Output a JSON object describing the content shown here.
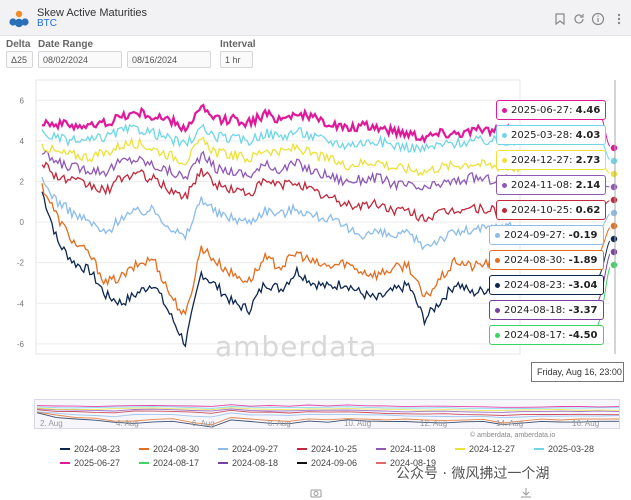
{
  "header": {
    "title": "Skew Active Maturities",
    "subtitle": "BTC",
    "icons": [
      "bookmark-icon",
      "refresh-icon",
      "info-icon",
      "more-icon"
    ]
  },
  "controls": {
    "delta_label": "Delta",
    "delta_value": "Δ25",
    "date_range_label": "Date Range",
    "date_start": "08/02/2024",
    "date_end": "08/16/2024",
    "interval_label": "Interval",
    "interval_value": "1 hr"
  },
  "tooltip": {
    "time": "Friday, Aug 16, 23:00",
    "entries": [
      {
        "label": "2025-06-27:",
        "value": "4.46",
        "color": "#e0189a"
      },
      {
        "label": "2025-03-28:",
        "value": "4.03",
        "color": "#6fd6e8"
      },
      {
        "label": "2024-12-27:",
        "value": "2.73",
        "color": "#ece13a"
      },
      {
        "label": "2024-11-08:",
        "value": "2.14",
        "color": "#8e58b8"
      },
      {
        "label": "2024-10-25:",
        "value": "0.62",
        "color": "#c2273a"
      },
      {
        "label": "2024-09-27:",
        "value": "-0.19",
        "color": "#8bbcec"
      },
      {
        "label": "2024-08-30:",
        "value": "-1.89",
        "color": "#e46d1e"
      },
      {
        "label": "2024-08-23:",
        "value": "-3.04",
        "color": "#0e2750"
      },
      {
        "label": "2024-08-18:",
        "value": "-3.37",
        "color": "#7a3fa0"
      },
      {
        "label": "2024-08-17:",
        "value": "-4.50",
        "color": "#3ed463"
      }
    ]
  },
  "watermark": "amberdata",
  "credit": "© amberdata, amberdata.io",
  "wechat": "公众号 · 微风拂过一个湖",
  "chart_data": {
    "type": "line",
    "ylim": [
      -6.5,
      7
    ],
    "yticks": [
      6,
      4,
      2,
      0,
      -2,
      -4,
      -6
    ],
    "xticks": [
      "3. Aug",
      "5. Aug",
      "7. Aug",
      "9. Aug",
      "11. Aug",
      "13. Aug",
      "15. Aug"
    ],
    "nav_ticks": [
      "2. Aug",
      "4. Aug",
      "6. Aug",
      "8. Aug",
      "10. Aug",
      "12. Aug",
      "14. Aug",
      "16. Aug"
    ],
    "series": [
      {
        "name": "2024-08-23",
        "color": "#0e2750",
        "values": [
          1.5,
          -1.0,
          -2.0,
          -2.4,
          -3.6,
          -4.0,
          -3.5,
          -3.0,
          -4.5,
          -6.0,
          -2.5,
          -3.2,
          -4.0,
          -4.3,
          -3.0,
          -3.3,
          -2.4,
          -3.0,
          -3.2,
          -3.0,
          -3.5,
          -3.8,
          -3.4,
          -3.1,
          -4.8,
          -3.9,
          -3.0,
          -3.5,
          -3.3,
          -3.1,
          -3.0
        ]
      },
      {
        "name": "2024-08-30",
        "color": "#e46d1e",
        "values": [
          1.8,
          0.2,
          -1.0,
          -1.6,
          -3.0,
          -2.7,
          -2.1,
          -1.8,
          -3.5,
          -4.7,
          -1.2,
          -2.0,
          -2.6,
          -2.9,
          -1.8,
          -2.2,
          -1.5,
          -2.0,
          -2.2,
          -2.0,
          -2.4,
          -2.6,
          -2.3,
          -2.1,
          -3.8,
          -2.8,
          -1.9,
          -2.2,
          -2.0,
          -1.9,
          -1.9
        ]
      },
      {
        "name": "2024-09-27",
        "color": "#8bbcec",
        "values": [
          2.0,
          1.0,
          0.4,
          0.0,
          -0.6,
          0.3,
          0.5,
          0.6,
          -0.2,
          -0.8,
          1.2,
          0.4,
          0.2,
          0.0,
          0.6,
          0.4,
          0.7,
          0.3,
          0.2,
          -0.3,
          -0.6,
          -0.5,
          -0.7,
          -0.6,
          -1.2,
          -0.8,
          -0.5,
          -0.4,
          -0.3,
          -0.2,
          -0.2
        ]
      },
      {
        "name": "2024-10-25",
        "color": "#c2273a",
        "values": [
          3.0,
          2.2,
          2.0,
          1.8,
          1.5,
          2.2,
          2.4,
          2.1,
          1.6,
          1.2,
          2.6,
          1.8,
          1.6,
          1.4,
          2.0,
          1.8,
          2.0,
          1.5,
          1.2,
          0.9,
          0.8,
          0.9,
          0.6,
          0.5,
          0.2,
          0.4,
          0.6,
          0.7,
          0.6,
          0.6,
          0.6
        ]
      },
      {
        "name": "2024-11-08",
        "color": "#8e58b8",
        "values": [
          3.4,
          2.9,
          2.7,
          2.6,
          2.5,
          3.0,
          3.1,
          2.8,
          2.5,
          2.2,
          3.3,
          2.6,
          2.5,
          2.3,
          2.8,
          2.6,
          2.9,
          2.5,
          2.3,
          2.0,
          2.1,
          2.2,
          1.9,
          1.8,
          1.6,
          1.9,
          2.0,
          2.2,
          2.1,
          2.1,
          2.1
        ]
      },
      {
        "name": "2024-12-27",
        "color": "#ece13a",
        "values": [
          3.8,
          3.4,
          3.3,
          3.2,
          3.4,
          3.8,
          3.9,
          3.6,
          3.3,
          3.0,
          4.0,
          3.4,
          3.3,
          3.1,
          3.6,
          3.4,
          3.7,
          3.3,
          3.1,
          2.8,
          2.9,
          3.0,
          2.7,
          2.6,
          2.5,
          2.7,
          2.8,
          2.9,
          2.8,
          2.7,
          2.7
        ]
      },
      {
        "name": "2025-03-28",
        "color": "#6fd6e8",
        "values": [
          4.4,
          4.1,
          4.0,
          4.0,
          4.2,
          4.5,
          4.6,
          4.4,
          4.1,
          3.8,
          4.6,
          4.2,
          4.1,
          4.0,
          4.4,
          4.2,
          4.5,
          4.2,
          4.0,
          3.8,
          3.9,
          4.0,
          3.8,
          3.7,
          3.6,
          3.8,
          3.9,
          4.0,
          4.0,
          4.0,
          4.0
        ]
      },
      {
        "name": "2025-06-27",
        "color": "#e0189a",
        "values": [
          5.0,
          4.8,
          4.8,
          4.7,
          4.9,
          5.2,
          5.4,
          5.2,
          5.0,
          4.6,
          5.6,
          5.0,
          5.1,
          4.9,
          5.3,
          5.1,
          5.4,
          5.1,
          4.9,
          4.6,
          4.7,
          4.7,
          4.5,
          4.4,
          4.2,
          4.4,
          4.4,
          4.5,
          4.5,
          4.5,
          4.5
        ]
      },
      {
        "name": "2024-08-17",
        "color": "#3ed463",
        "values": [
          null,
          null,
          null,
          null,
          null,
          null,
          null,
          null,
          null,
          null,
          null,
          null,
          null,
          null,
          null,
          null,
          null,
          null,
          null,
          null,
          null,
          null,
          null,
          null,
          null,
          null,
          null,
          null,
          null,
          null,
          -4.5
        ]
      },
      {
        "name": "2024-08-18",
        "color": "#7a3fa0",
        "values": [
          null,
          null,
          null,
          null,
          null,
          null,
          null,
          null,
          null,
          null,
          null,
          null,
          null,
          null,
          null,
          null,
          null,
          null,
          null,
          null,
          null,
          null,
          null,
          null,
          null,
          null,
          null,
          null,
          null,
          null,
          -3.4
        ]
      },
      {
        "name": "2024-09-06",
        "color": "#111111",
        "values": []
      },
      {
        "name": "2024-08-19",
        "color": "#e06a66",
        "values": []
      }
    ]
  }
}
